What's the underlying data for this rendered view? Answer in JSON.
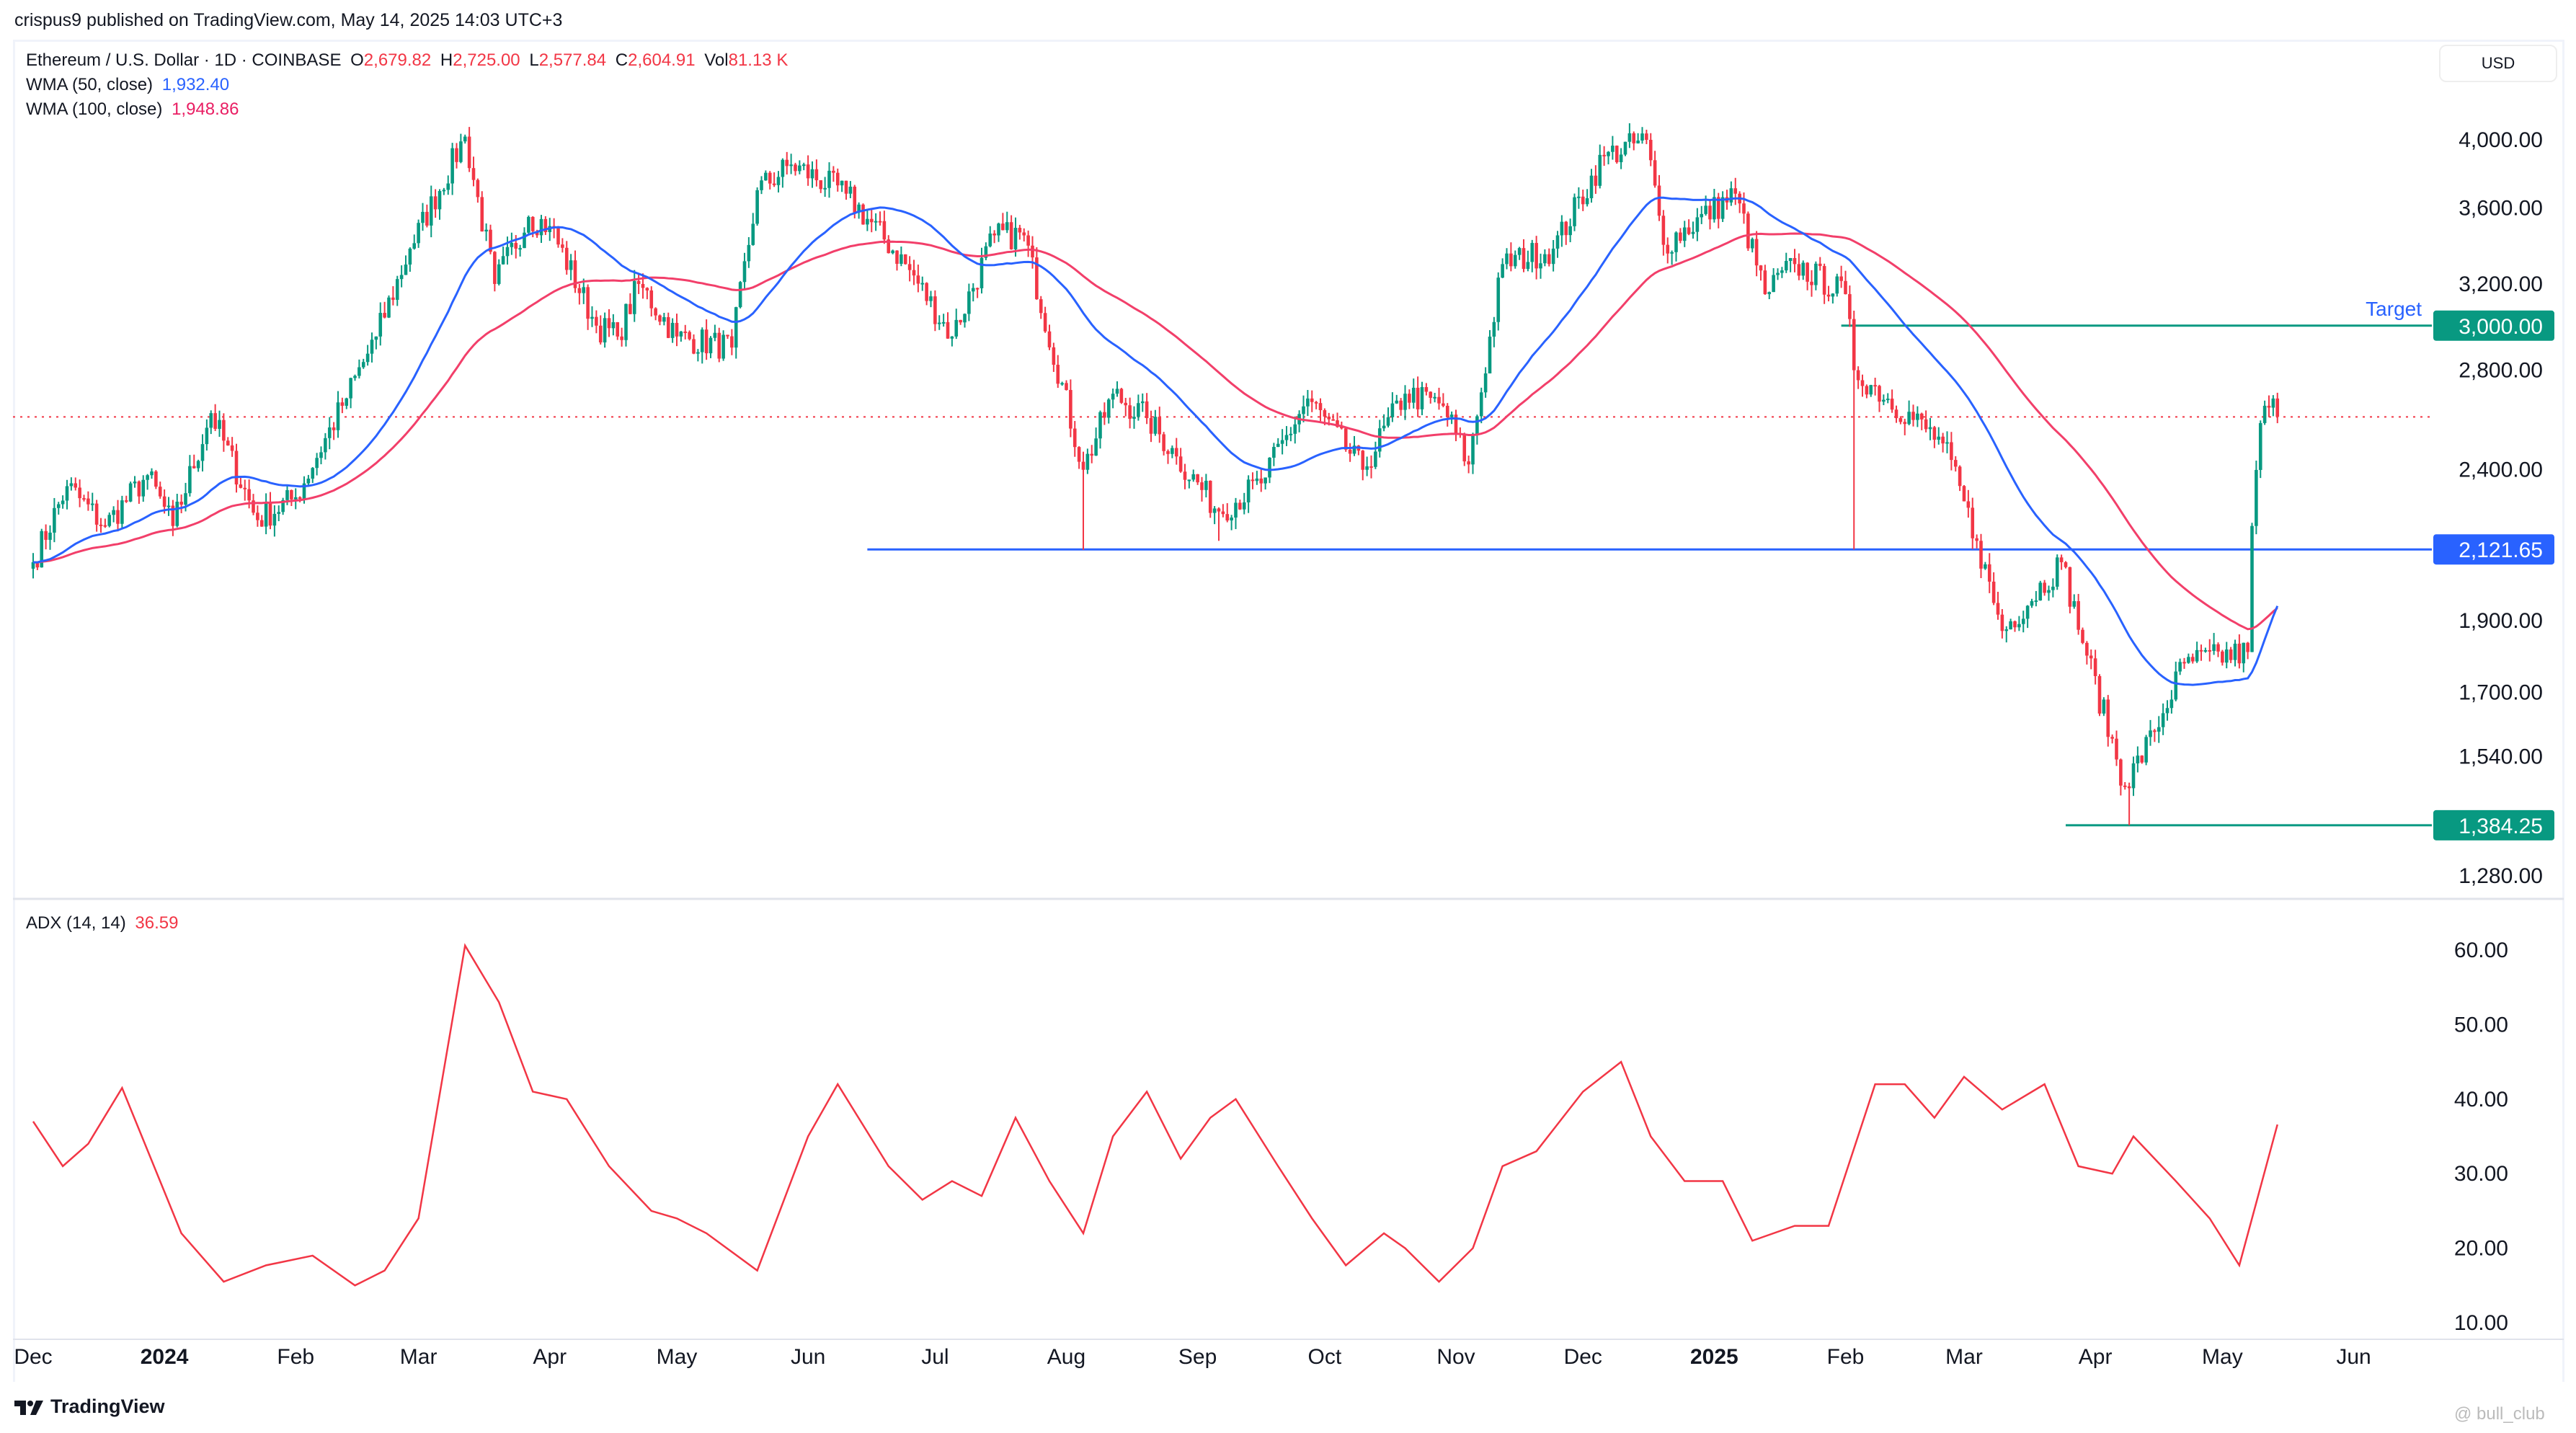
{
  "header": {
    "publisher": "crispus9 published on TradingView.com, May 14, 2025 14:03 UTC+3",
    "symbol": "Ethereum / U.S. Dollar · 1D · COINBASE",
    "open_label": "O",
    "open": "2,679.82",
    "high_label": "H",
    "high": "2,725.00",
    "low_label": "L",
    "low": "2,577.84",
    "close_label": "C",
    "close": "2,604.91",
    "vol_label": "Vol",
    "vol": "81.13 K",
    "wma50_label": "WMA (50, close)",
    "wma50_value": "1,932.40",
    "wma100_label": "WMA (100, close)",
    "wma100_value": "1,948.86",
    "adx_label": "ADX (14, 14)",
    "adx_value": "36.59",
    "currency": "USD"
  },
  "footer": {
    "logo": "TradingView",
    "watermark": "@ bull_club"
  },
  "colors": {
    "up": "#089981",
    "down": "#f23645",
    "wma50": "#2962ff",
    "wma100": "#f23f6a",
    "adx": "#f23645",
    "support": "#2962ff",
    "target": "#089981"
  },
  "chart_data": [
    {
      "type": "candlestick",
      "title": "Ethereum / U.S. Dollar · 1D · COINBASE",
      "yscale": "log",
      "ylim": [
        1230,
        4200
      ],
      "y_ticks": [
        "4,000.00",
        "3,600.00",
        "3,200.00",
        "2,800.00",
        "2,400.00",
        "1,900.00",
        "1,700.00",
        "1,540.00",
        "1,280.00"
      ],
      "y_tick_values": [
        4000,
        3600,
        3200,
        2800,
        2400,
        1900,
        1700,
        1540,
        1280
      ],
      "x_ticks": [
        {
          "label": "Dec",
          "date": "2023-12-01",
          "bold": false
        },
        {
          "label": "2024",
          "date": "2024-01-01",
          "bold": true
        },
        {
          "label": "Feb",
          "date": "2024-02-01",
          "bold": false
        },
        {
          "label": "Mar",
          "date": "2024-03-01",
          "bold": false
        },
        {
          "label": "Apr",
          "date": "2024-04-01",
          "bold": false
        },
        {
          "label": "May",
          "date": "2024-05-01",
          "bold": false
        },
        {
          "label": "Jun",
          "date": "2024-06-01",
          "bold": false
        },
        {
          "label": "Jul",
          "date": "2024-07-01",
          "bold": false
        },
        {
          "label": "Aug",
          "date": "2024-08-01",
          "bold": false
        },
        {
          "label": "Sep",
          "date": "2024-09-01",
          "bold": false
        },
        {
          "label": "Oct",
          "date": "2024-10-01",
          "bold": false
        },
        {
          "label": "Nov",
          "date": "2024-11-01",
          "bold": false
        },
        {
          "label": "Dec",
          "date": "2024-12-01",
          "bold": false
        },
        {
          "label": "2025",
          "date": "2025-01-01",
          "bold": true
        },
        {
          "label": "Feb",
          "date": "2025-02-01",
          "bold": false
        },
        {
          "label": "Mar",
          "date": "2025-03-01",
          "bold": false
        },
        {
          "label": "Apr",
          "date": "2025-04-01",
          "bold": false
        },
        {
          "label": "May",
          "date": "2025-05-01",
          "bold": false
        },
        {
          "label": "Jun",
          "date": "2025-06-01",
          "bold": false
        }
      ],
      "close_anchors": [
        [
          "2023-12-01",
          2080
        ],
        [
          "2023-12-09",
          2340
        ],
        [
          "2023-12-18",
          2200
        ],
        [
          "2023-12-28",
          2380
        ],
        [
          "2024-01-03",
          2200
        ],
        [
          "2024-01-12",
          2620
        ],
        [
          "2024-01-23",
          2220
        ],
        [
          "2024-02-01",
          2300
        ],
        [
          "2024-02-12",
          2650
        ],
        [
          "2024-02-20",
          2950
        ],
        [
          "2024-02-28",
          3380
        ],
        [
          "2024-03-12",
          4020
        ],
        [
          "2024-03-19",
          3200
        ],
        [
          "2024-03-27",
          3550
        ],
        [
          "2024-04-01",
          3500
        ],
        [
          "2024-04-12",
          3000
        ],
        [
          "2024-04-17",
          2950
        ],
        [
          "2024-04-22",
          3200
        ],
        [
          "2024-05-01",
          2950
        ],
        [
          "2024-05-14",
          2900
        ],
        [
          "2024-05-20",
          3700
        ],
        [
          "2024-05-28",
          3850
        ],
        [
          "2024-06-10",
          3680
        ],
        [
          "2024-06-24",
          3300
        ],
        [
          "2024-07-05",
          2950
        ],
        [
          "2024-07-15",
          3450
        ],
        [
          "2024-07-22",
          3450
        ],
        [
          "2024-08-05",
          2400
        ],
        [
          "2024-08-12",
          2700
        ],
        [
          "2024-08-20",
          2600
        ],
        [
          "2024-08-27",
          2450
        ],
        [
          "2024-09-06",
          2250
        ],
        [
          "2024-09-16",
          2350
        ],
        [
          "2024-09-27",
          2680
        ],
        [
          "2024-10-10",
          2400
        ],
        [
          "2024-10-20",
          2700
        ],
        [
          "2024-10-29",
          2650
        ],
        [
          "2024-11-04",
          2420
        ],
        [
          "2024-11-12",
          3300
        ],
        [
          "2024-11-24",
          3380
        ],
        [
          "2024-12-06",
          3900
        ],
        [
          "2024-12-16",
          4000
        ],
        [
          "2024-12-20",
          3400
        ],
        [
          "2025-01-06",
          3680
        ],
        [
          "2025-01-13",
          3150
        ],
        [
          "2025-01-20",
          3300
        ],
        [
          "2025-02-01",
          3150
        ],
        [
          "2025-02-03",
          2800
        ],
        [
          "2025-02-24",
          2500
        ],
        [
          "2025-03-04",
          2150
        ],
        [
          "2025-03-10",
          1870
        ],
        [
          "2025-03-24",
          2080
        ],
        [
          "2025-03-30",
          1800
        ],
        [
          "2025-04-08",
          1470
        ],
        [
          "2025-04-15",
          1600
        ],
        [
          "2025-04-22",
          1780
        ],
        [
          "2025-05-07",
          1810
        ],
        [
          "2025-05-08",
          2200
        ],
        [
          "2025-05-10",
          2580
        ],
        [
          "2025-05-13",
          2680
        ],
        [
          "2025-05-14",
          2605
        ]
      ],
      "series": [
        {
          "name": "WMA (50, close)",
          "last": 1932.4
        },
        {
          "name": "WMA (100, close)",
          "last": 1948.86
        }
      ],
      "annotations": [
        {
          "type": "hline",
          "label": "2,121.65",
          "value": 2121.65,
          "from": "2024-06-15",
          "color": "support"
        },
        {
          "type": "hline",
          "label": "3,000.00",
          "value": 3000,
          "from": "2025-01-31",
          "color": "target",
          "text": "Target"
        },
        {
          "type": "hline",
          "label": "1,384.25",
          "value": 1384.25,
          "from": "2025-03-25",
          "color": "target"
        },
        {
          "type": "current-price",
          "value": 2604.91
        }
      ]
    },
    {
      "type": "line",
      "title": "ADX (14, 14)",
      "ylim": [
        8,
        64
      ],
      "y_ticks": [
        "60.00",
        "50.00",
        "40.00",
        "30.00",
        "20.00",
        "10.00"
      ],
      "y_tick_values": [
        60,
        50,
        40,
        30,
        20,
        10
      ],
      "points": [
        [
          "2023-12-01",
          37
        ],
        [
          "2023-12-08",
          31
        ],
        [
          "2023-12-14",
          34
        ],
        [
          "2023-12-22",
          41.5
        ],
        [
          "2024-01-05",
          22
        ],
        [
          "2024-01-15",
          15.5
        ],
        [
          "2024-01-25",
          17.7
        ],
        [
          "2024-02-05",
          19
        ],
        [
          "2024-02-15",
          15
        ],
        [
          "2024-02-22",
          17
        ],
        [
          "2024-03-01",
          24
        ],
        [
          "2024-03-12",
          60.6
        ],
        [
          "2024-03-20",
          53
        ],
        [
          "2024-03-28",
          41
        ],
        [
          "2024-04-05",
          40
        ],
        [
          "2024-04-15",
          31
        ],
        [
          "2024-04-25",
          25
        ],
        [
          "2024-05-01",
          24
        ],
        [
          "2024-05-08",
          22
        ],
        [
          "2024-05-20",
          17
        ],
        [
          "2024-06-01",
          35
        ],
        [
          "2024-06-08",
          42
        ],
        [
          "2024-06-20",
          31
        ],
        [
          "2024-06-28",
          26.5
        ],
        [
          "2024-07-05",
          29
        ],
        [
          "2024-07-12",
          27
        ],
        [
          "2024-07-20",
          37.5
        ],
        [
          "2024-07-28",
          29
        ],
        [
          "2024-08-05",
          22
        ],
        [
          "2024-08-12",
          35
        ],
        [
          "2024-08-20",
          41
        ],
        [
          "2024-08-28",
          32
        ],
        [
          "2024-09-04",
          37.5
        ],
        [
          "2024-09-10",
          40
        ],
        [
          "2024-09-20",
          31
        ],
        [
          "2024-09-28",
          24
        ],
        [
          "2024-10-06",
          17.7
        ],
        [
          "2024-10-15",
          22
        ],
        [
          "2024-10-20",
          20
        ],
        [
          "2024-10-28",
          15.5
        ],
        [
          "2024-11-05",
          20
        ],
        [
          "2024-11-12",
          31
        ],
        [
          "2024-11-20",
          33
        ],
        [
          "2024-12-01",
          41
        ],
        [
          "2024-12-10",
          45
        ],
        [
          "2024-12-17",
          35
        ],
        [
          "2024-12-25",
          29
        ],
        [
          "2025-01-03",
          29
        ],
        [
          "2025-01-10",
          21
        ],
        [
          "2025-01-20",
          23
        ],
        [
          "2025-01-28",
          23
        ],
        [
          "2025-02-08",
          42
        ],
        [
          "2025-02-15",
          42
        ],
        [
          "2025-02-22",
          37.5
        ],
        [
          "2025-03-01",
          43
        ],
        [
          "2025-03-10",
          38.6
        ],
        [
          "2025-03-20",
          42
        ],
        [
          "2025-03-28",
          31
        ],
        [
          "2025-04-05",
          30
        ],
        [
          "2025-04-10",
          35
        ],
        [
          "2025-04-20",
          29
        ],
        [
          "2025-04-28",
          24
        ],
        [
          "2025-05-05",
          17.7
        ],
        [
          "2025-05-14",
          36.59
        ]
      ]
    }
  ]
}
